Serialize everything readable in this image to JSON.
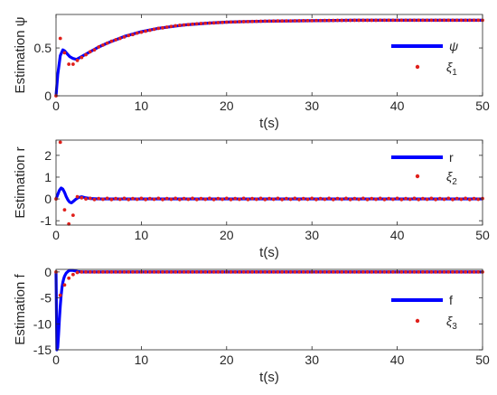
{
  "chart_data": [
    {
      "type": "line",
      "ylabel": "Estimation ψ",
      "xlabel": "t(s)",
      "xlim": [
        0,
        50
      ],
      "ylim": [
        0,
        0.85
      ],
      "xticks": [
        0,
        10,
        20,
        30,
        40,
        50
      ],
      "xtick_labels": [
        "0",
        "10",
        "20",
        "30",
        "40",
        "50"
      ],
      "yticks": [
        0,
        0.5
      ],
      "ytick_labels": [
        "0",
        "0.5"
      ],
      "legend_position": "right",
      "series": [
        {
          "name": "ψ",
          "style": "solid line",
          "color": "#0000ff",
          "x": [
            0,
            0.2,
            0.5,
            0.8,
            1.0,
            1.3,
            1.6,
            2.0,
            2.4,
            2.8,
            3.2,
            4,
            5,
            6,
            8,
            10,
            12,
            15,
            18,
            20,
            22,
            25,
            30,
            35,
            40,
            45,
            50
          ],
          "y": [
            0,
            0.22,
            0.42,
            0.48,
            0.47,
            0.44,
            0.41,
            0.39,
            0.38,
            0.4,
            0.42,
            0.46,
            0.51,
            0.55,
            0.62,
            0.67,
            0.705,
            0.74,
            0.76,
            0.77,
            0.775,
            0.78,
            0.785,
            0.79,
            0.79,
            0.79,
            0.79
          ]
        },
        {
          "name": "ξ1",
          "style": "red dots",
          "color": "#e0201b",
          "x": [
            0,
            0.5,
            1.0,
            1.5,
            2.0,
            2.5,
            3,
            3.5,
            4,
            4.5,
            5,
            5.5,
            6,
            6.5,
            7,
            7.5,
            8,
            8.5,
            9,
            9.5,
            10,
            10.5,
            11,
            11.5,
            12,
            12.5,
            13,
            13.5,
            14,
            14.5,
            15,
            15.5,
            16,
            16.5,
            17,
            17.5,
            18,
            18.5,
            19,
            19.5,
            20,
            20.5,
            21,
            21.5,
            22,
            22.5,
            23,
            23.5,
            24,
            24.5,
            25,
            25.5,
            26,
            26.5,
            27,
            27.5,
            28,
            28.5,
            29,
            29.5,
            30,
            30.5,
            31,
            31.5,
            32,
            32.5,
            33,
            33.5,
            34,
            34.5,
            35,
            35.5,
            36,
            36.5,
            37,
            37.5,
            38,
            38.5,
            39,
            39.5,
            40,
            40.5,
            41,
            41.5,
            42,
            42.5,
            43,
            43.5,
            44,
            44.5,
            45,
            45.5,
            46,
            46.5,
            47,
            47.5,
            48,
            48.5,
            49,
            49.5,
            50
          ],
          "y": [
            0,
            0.6,
            0.45,
            0.33,
            0.33,
            0.37,
            0.4,
            0.43,
            0.46,
            0.48,
            0.51,
            0.53,
            0.55,
            0.57,
            0.585,
            0.6,
            0.615,
            0.63,
            0.64,
            0.655,
            0.665,
            0.675,
            0.685,
            0.695,
            0.705,
            0.71,
            0.718,
            0.725,
            0.732,
            0.736,
            0.74,
            0.744,
            0.748,
            0.752,
            0.755,
            0.758,
            0.76,
            0.762,
            0.765,
            0.767,
            0.77,
            0.771,
            0.772,
            0.774,
            0.775,
            0.776,
            0.777,
            0.778,
            0.779,
            0.78,
            0.78,
            0.781,
            0.782,
            0.782,
            0.783,
            0.783,
            0.784,
            0.784,
            0.785,
            0.785,
            0.785,
            0.786,
            0.786,
            0.787,
            0.787,
            0.787,
            0.788,
            0.788,
            0.788,
            0.788,
            0.789,
            0.789,
            0.789,
            0.789,
            0.789,
            0.789,
            0.79,
            0.79,
            0.79,
            0.79,
            0.79,
            0.79,
            0.79,
            0.79,
            0.79,
            0.79,
            0.79,
            0.79,
            0.79,
            0.79,
            0.79,
            0.79,
            0.79,
            0.79,
            0.79,
            0.79,
            0.79,
            0.79,
            0.79,
            0.79,
            0.79
          ]
        }
      ]
    },
    {
      "type": "line",
      "ylabel": "Estimation r",
      "xlabel": "t(s)",
      "xlim": [
        0,
        50
      ],
      "ylim": [
        -1.2,
        2.7
      ],
      "xticks": [
        0,
        10,
        20,
        30,
        40,
        50
      ],
      "xtick_labels": [
        "0",
        "10",
        "20",
        "30",
        "40",
        "50"
      ],
      "yticks": [
        -1,
        0,
        1,
        2
      ],
      "ytick_labels": [
        "-1",
        "0",
        "1",
        "2"
      ],
      "legend_position": "top-right",
      "series": [
        {
          "name": "r",
          "style": "solid line",
          "color": "#0000ff",
          "x": [
            0,
            0.2,
            0.4,
            0.6,
            0.8,
            1.0,
            1.2,
            1.4,
            1.6,
            1.8,
            2.0,
            2.3,
            2.6,
            3.0,
            3.5,
            4,
            5,
            10,
            20,
            30,
            40,
            50
          ],
          "y": [
            0,
            0.2,
            0.4,
            0.5,
            0.45,
            0.3,
            0.1,
            -0.05,
            -0.15,
            -0.18,
            -0.12,
            -0.02,
            0.06,
            0.1,
            0.05,
            0.02,
            0,
            0,
            0,
            0,
            0,
            0
          ]
        },
        {
          "name": "ξ2",
          "style": "red dots",
          "color": "#e0201b",
          "x": [
            0,
            0.5,
            1.0,
            1.5,
            2.0,
            2.5,
            3,
            3.5,
            4,
            4.5,
            5,
            5.5,
            6,
            6.5,
            7,
            7.5,
            8,
            8.5,
            9,
            9.5,
            10,
            10.5,
            11,
            11.5,
            12,
            12.5,
            13,
            13.5,
            14,
            14.5,
            15,
            15.5,
            16,
            16.5,
            17,
            17.5,
            18,
            18.5,
            19,
            19.5,
            20,
            20.5,
            21,
            21.5,
            22,
            22.5,
            23,
            23.5,
            24,
            24.5,
            25,
            25.5,
            26,
            26.5,
            27,
            27.5,
            28,
            28.5,
            29,
            29.5,
            30,
            30.5,
            31,
            31.5,
            32,
            32.5,
            33,
            33.5,
            34,
            34.5,
            35,
            35.5,
            36,
            36.5,
            37,
            37.5,
            38,
            38.5,
            39,
            39.5,
            40,
            40.5,
            41,
            41.5,
            42,
            42.5,
            43,
            43.5,
            44,
            44.5,
            45,
            45.5,
            46,
            46.5,
            47,
            47.5,
            48,
            48.5,
            49,
            49.5,
            50
          ],
          "y": [
            0,
            2.6,
            -0.5,
            -1.15,
            -0.75,
            0.1,
            0.05,
            0,
            0.03,
            -0.03,
            0.02,
            -0.02,
            0.03,
            -0.03,
            0.02,
            -0.02,
            0.03,
            -0.03,
            0.02,
            -0.02,
            0.03,
            -0.03,
            0.02,
            -0.02,
            0.03,
            -0.03,
            0.02,
            -0.02,
            0.03,
            -0.03,
            0.02,
            -0.02,
            0.03,
            -0.03,
            0.02,
            -0.02,
            0.03,
            -0.03,
            0.02,
            -0.02,
            0.03,
            -0.03,
            0.02,
            -0.02,
            0.03,
            -0.03,
            0.02,
            -0.02,
            0.03,
            -0.03,
            0.02,
            -0.02,
            0.03,
            -0.03,
            0.02,
            -0.02,
            0.03,
            -0.03,
            0.02,
            -0.02,
            0.03,
            -0.03,
            0.02,
            -0.02,
            0.03,
            -0.03,
            0.02,
            -0.02,
            0.03,
            -0.03,
            0.02,
            -0.02,
            0.03,
            -0.03,
            0.02,
            -0.02,
            0.03,
            -0.03,
            0.02,
            -0.02,
            0.03,
            -0.03,
            0.02,
            -0.02,
            0.03,
            -0.03,
            0.02,
            -0.02,
            0.03,
            -0.03,
            0.02,
            -0.02,
            0.03,
            -0.03,
            0.02,
            -0.02,
            0.03,
            -0.03,
            0.02,
            -0.02,
            0.02
          ]
        }
      ]
    },
    {
      "type": "line",
      "ylabel": "Estimation f",
      "xlabel": "t(s)",
      "xlim": [
        0,
        50
      ],
      "ylim": [
        -15,
        0.5
      ],
      "xticks": [
        0,
        10,
        20,
        30,
        40,
        50
      ],
      "xtick_labels": [
        "0",
        "10",
        "20",
        "30",
        "40",
        "50"
      ],
      "yticks": [
        -15,
        -10,
        -5,
        0
      ],
      "ytick_labels": [
        "-15",
        "-10",
        "-5",
        "0"
      ],
      "legend_position": "right",
      "series": [
        {
          "name": "f",
          "style": "solid line",
          "color": "#0000ff",
          "x": [
            0,
            0.1,
            0.2,
            0.3,
            0.4,
            0.5,
            0.6,
            0.7,
            0.8,
            0.9,
            1.0,
            1.2,
            1.4,
            1.6,
            2.0,
            2.5,
            3.0,
            3.5,
            4,
            5,
            10,
            20,
            30,
            40,
            50
          ],
          "y": [
            0,
            -15,
            -14.5,
            -12,
            -9,
            -6.5,
            -4.5,
            -3,
            -2,
            -1.3,
            -0.8,
            -0.2,
            0.1,
            0.3,
            0.3,
            0.1,
            0,
            0,
            0,
            0,
            0,
            0,
            0,
            0,
            0
          ]
        },
        {
          "name": "ξ3",
          "style": "red dots",
          "color": "#e0201b",
          "x": [
            0,
            0.5,
            1.0,
            1.5,
            2.0,
            2.5,
            3,
            3.5,
            4,
            4.5,
            5,
            5.5,
            6,
            6.5,
            7,
            7.5,
            8,
            8.5,
            9,
            9.5,
            10,
            10.5,
            11,
            11.5,
            12,
            12.5,
            13,
            13.5,
            14,
            14.5,
            15,
            15.5,
            16,
            16.5,
            17,
            17.5,
            18,
            18.5,
            19,
            19.5,
            20,
            20.5,
            21,
            21.5,
            22,
            22.5,
            23,
            23.5,
            24,
            24.5,
            25,
            25.5,
            26,
            26.5,
            27,
            27.5,
            28,
            28.5,
            29,
            29.5,
            30,
            30.5,
            31,
            31.5,
            32,
            32.5,
            33,
            33.5,
            34,
            34.5,
            35,
            35.5,
            36,
            36.5,
            37,
            37.5,
            38,
            38.5,
            39,
            39.5,
            40,
            40.5,
            41,
            41.5,
            42,
            42.5,
            43,
            43.5,
            44,
            44.5,
            45,
            45.5,
            46,
            46.5,
            47,
            47.5,
            48,
            48.5,
            49,
            49.5,
            50
          ],
          "y": [
            0,
            -4.5,
            -2.5,
            -1.2,
            -0.5,
            -0.1,
            0,
            0,
            0,
            0,
            0,
            0,
            0,
            0,
            0,
            0,
            0,
            0,
            0,
            0,
            0,
            0,
            0,
            0,
            0,
            0,
            0,
            0,
            0,
            0,
            0,
            0,
            0,
            0,
            0,
            0,
            0,
            0,
            0,
            0,
            0,
            0,
            0,
            0,
            0,
            0,
            0,
            0,
            0,
            0,
            0,
            0,
            0,
            0,
            0,
            0,
            0,
            0,
            0,
            0,
            0,
            0,
            0,
            0,
            0,
            0,
            0,
            0,
            0,
            0,
            0,
            0,
            0,
            0,
            0,
            0,
            0,
            0,
            0,
            0,
            0,
            0,
            0,
            0,
            0,
            0,
            0,
            0,
            0,
            0,
            0,
            0,
            0,
            0,
            0,
            0,
            0,
            0,
            0,
            0,
            0
          ]
        }
      ]
    }
  ]
}
